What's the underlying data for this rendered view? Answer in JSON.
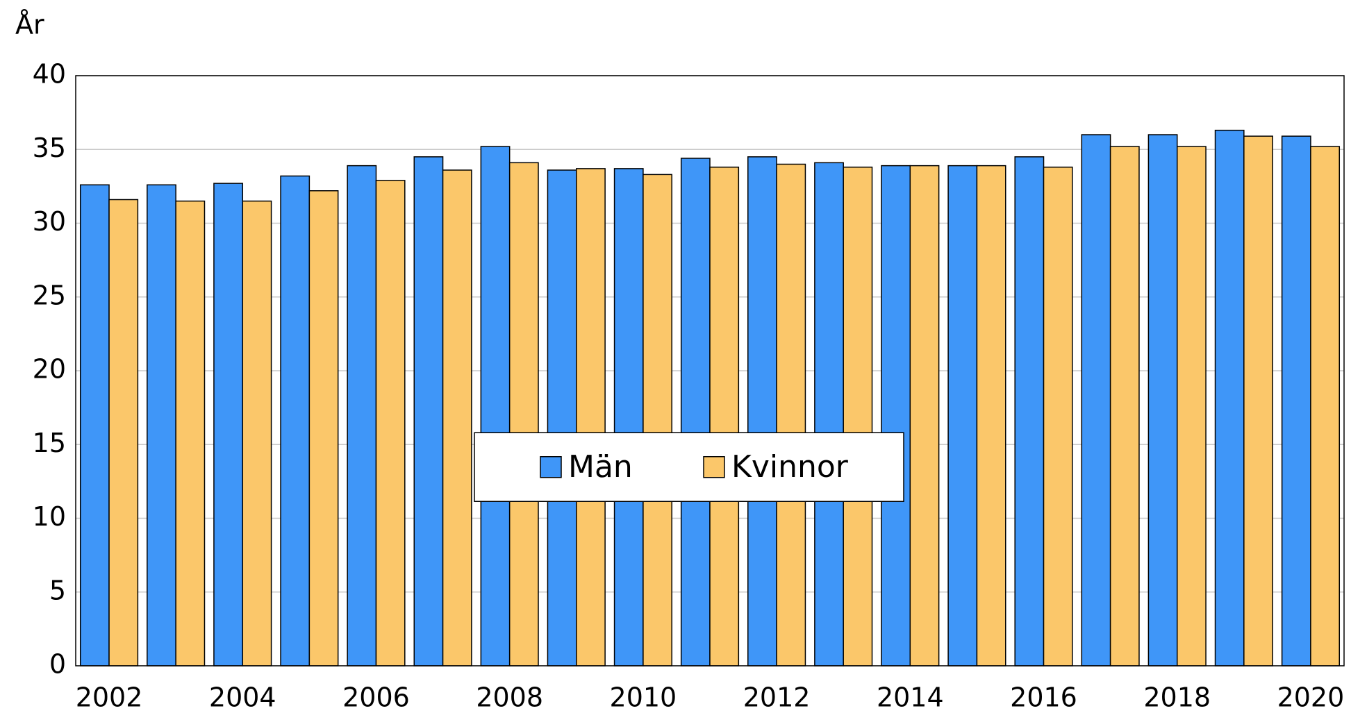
{
  "chart_data": {
    "type": "bar",
    "y_label": "År",
    "categories": [
      "2002",
      null,
      "2004",
      null,
      "2006",
      null,
      "2008",
      null,
      "2010",
      null,
      "2012",
      null,
      "2014",
      null,
      "2016",
      null,
      "2018",
      null,
      "2020"
    ],
    "series": [
      {
        "name": "Män",
        "color": "#3f96f8",
        "values": [
          32.6,
          32.6,
          32.7,
          33.2,
          33.9,
          34.5,
          35.2,
          33.6,
          33.7,
          34.4,
          34.5,
          34.1,
          33.9,
          33.9,
          34.5,
          36.0,
          36.0,
          36.3,
          35.9
        ]
      },
      {
        "name": "Kvinnor",
        "color": "#fbc76a",
        "values": [
          31.6,
          31.5,
          31.5,
          32.2,
          32.9,
          33.6,
          34.1,
          33.7,
          33.3,
          33.8,
          34.0,
          33.8,
          33.9,
          33.9,
          33.8,
          35.2,
          35.2,
          35.9,
          35.2
        ]
      }
    ],
    "ylim": [
      0,
      40
    ],
    "yticks": [
      0,
      5,
      10,
      15,
      20,
      25,
      30,
      35,
      40
    ],
    "grid": true,
    "legend": "center"
  }
}
